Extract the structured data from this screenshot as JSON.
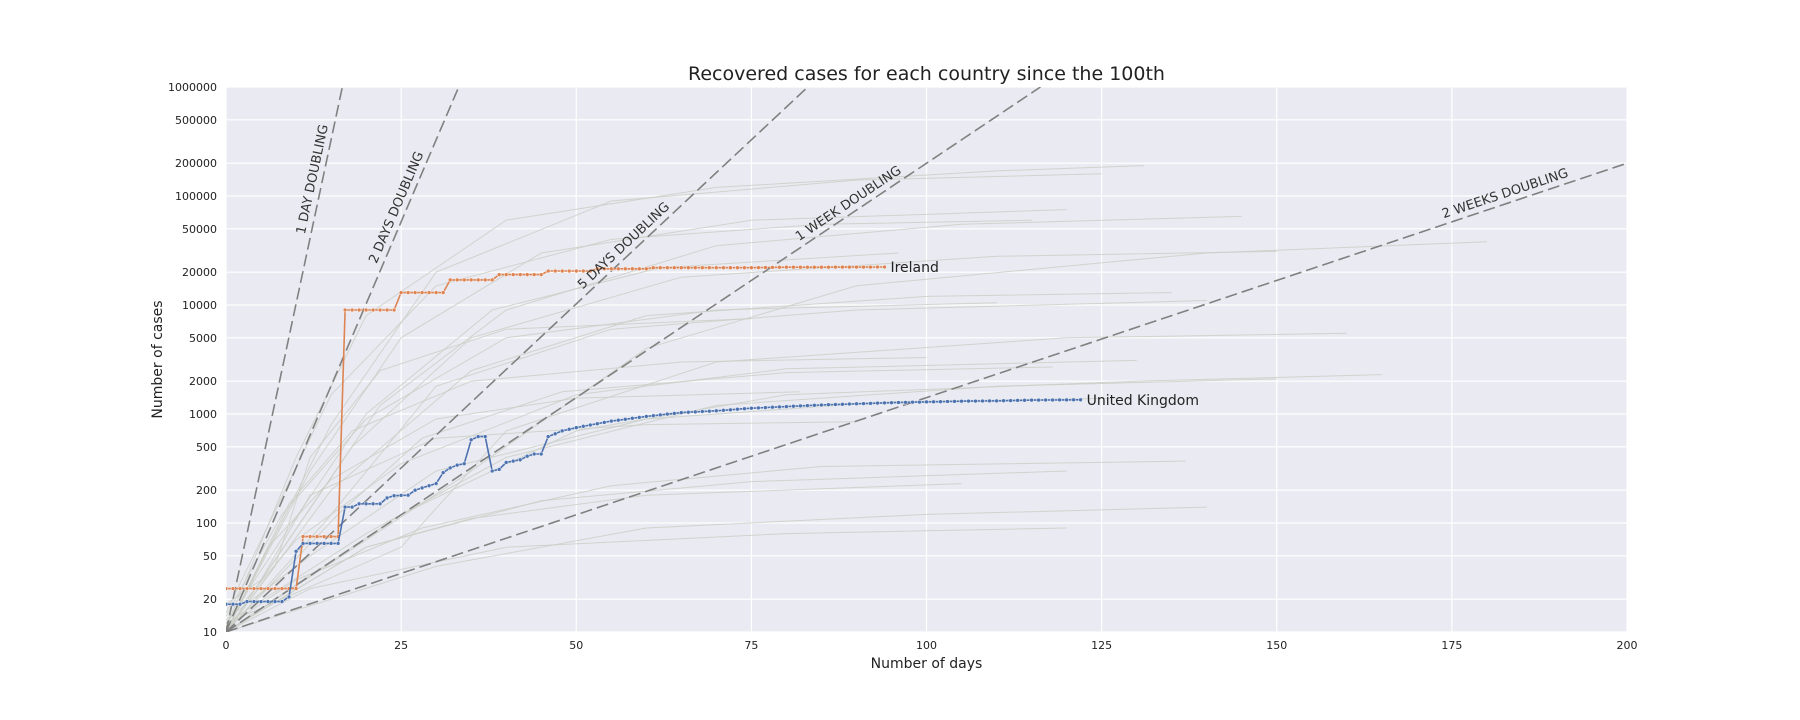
{
  "chart_data": {
    "type": "line",
    "title": "Recovered cases for each country since the 100th",
    "xlabel": "Number of days",
    "ylabel": "Number of cases",
    "xlim": [
      0,
      200
    ],
    "ylim": [
      10,
      1000000
    ],
    "yscale": "log",
    "grid": true,
    "x_ticks": [
      0,
      25,
      50,
      75,
      100,
      125,
      150,
      175,
      200
    ],
    "y_ticks": [
      10,
      20,
      50,
      100,
      200,
      500,
      1000,
      2000,
      5000,
      10000,
      20000,
      50000,
      100000,
      200000,
      500000,
      1000000
    ],
    "colors": {
      "background": "#eaeaf2",
      "grid": "#ffffff",
      "reference": "#808080",
      "other_countries": "#c8cec4",
      "Ireland": "#dd8452",
      "United Kingdom": "#4c72b0"
    },
    "reference_lines": [
      {
        "label": "1 DAY DOUBLING",
        "doubling_days": 1
      },
      {
        "label": "2 DAYS DOUBLING",
        "doubling_days": 2
      },
      {
        "label": "5 DAYS DOUBLING",
        "doubling_days": 5
      },
      {
        "label": "1 WEEK DOUBLING",
        "doubling_days": 7
      },
      {
        "label": "2 WEEKS DOUBLING",
        "doubling_days": 14
      }
    ],
    "series": [
      {
        "name": "Ireland",
        "points": [
          [
            0,
            25
          ],
          [
            10,
            25
          ],
          [
            11,
            75
          ],
          [
            16,
            75
          ],
          [
            17,
            9000
          ],
          [
            24,
            9000
          ],
          [
            25,
            13000
          ],
          [
            31,
            13000
          ],
          [
            32,
            17000
          ],
          [
            38,
            17000
          ],
          [
            39,
            19000
          ],
          [
            45,
            19000
          ],
          [
            46,
            20500
          ],
          [
            52,
            20500
          ],
          [
            53,
            21500
          ],
          [
            60,
            21500
          ],
          [
            61,
            22000
          ],
          [
            75,
            22000
          ],
          [
            80,
            22200
          ],
          [
            94,
            22300
          ]
        ]
      },
      {
        "name": "United Kingdom",
        "points": [
          [
            0,
            18
          ],
          [
            2,
            18
          ],
          [
            3,
            19
          ],
          [
            8,
            19
          ],
          [
            9,
            21
          ],
          [
            10,
            55
          ],
          [
            11,
            65
          ],
          [
            16,
            65
          ],
          [
            17,
            140
          ],
          [
            18,
            140
          ],
          [
            19,
            150
          ],
          [
            22,
            150
          ],
          [
            23,
            170
          ],
          [
            24,
            178
          ],
          [
            26,
            180
          ],
          [
            27,
            200
          ],
          [
            29,
            220
          ],
          [
            30,
            230
          ],
          [
            31,
            290
          ],
          [
            32,
            320
          ],
          [
            33,
            340
          ],
          [
            34,
            350
          ],
          [
            35,
            580
          ],
          [
            36,
            620
          ],
          [
            37,
            620
          ],
          [
            38,
            300
          ],
          [
            39,
            310
          ],
          [
            40,
            360
          ],
          [
            42,
            380
          ],
          [
            43,
            410
          ],
          [
            44,
            430
          ],
          [
            45,
            430
          ],
          [
            46,
            620
          ],
          [
            48,
            700
          ],
          [
            50,
            750
          ],
          [
            55,
            860
          ],
          [
            60,
            950
          ],
          [
            65,
            1030
          ],
          [
            70,
            1070
          ],
          [
            75,
            1130
          ],
          [
            80,
            1170
          ],
          [
            85,
            1210
          ],
          [
            90,
            1240
          ],
          [
            95,
            1270
          ],
          [
            100,
            1290
          ],
          [
            105,
            1310
          ],
          [
            110,
            1320
          ],
          [
            115,
            1340
          ],
          [
            122,
            1350
          ]
        ]
      }
    ],
    "other_countries": [
      [
        [
          0,
          10
        ],
        [
          20,
          60
        ],
        [
          45,
          160
        ],
        [
          75,
          240
        ],
        [
          120,
          300
        ]
      ],
      [
        [
          0,
          12
        ],
        [
          10,
          70
        ],
        [
          25,
          350
        ],
        [
          50,
          1500
        ],
        [
          80,
          2600
        ],
        [
          130,
          3100
        ]
      ],
      [
        [
          0,
          10
        ],
        [
          15,
          200
        ],
        [
          35,
          2500
        ],
        [
          60,
          8000
        ],
        [
          100,
          12000
        ],
        [
          135,
          13000
        ]
      ],
      [
        [
          0,
          14
        ],
        [
          8,
          120
        ],
        [
          20,
          900
        ],
        [
          40,
          5000
        ],
        [
          70,
          9000
        ],
        [
          110,
          10500
        ]
      ],
      [
        [
          0,
          10
        ],
        [
          12,
          300
        ],
        [
          25,
          5000
        ],
        [
          45,
          30000
        ],
        [
          75,
          60000
        ],
        [
          120,
          75000
        ]
      ],
      [
        [
          0,
          11
        ],
        [
          10,
          400
        ],
        [
          20,
          8000
        ],
        [
          40,
          60000
        ],
        [
          70,
          120000
        ],
        [
          110,
          170000
        ],
        [
          131,
          190000
        ]
      ],
      [
        [
          0,
          10
        ],
        [
          15,
          800
        ],
        [
          30,
          20000
        ],
        [
          55,
          90000
        ],
        [
          90,
          140000
        ],
        [
          125,
          160000
        ]
      ],
      [
        [
          0,
          12
        ],
        [
          20,
          80
        ],
        [
          40,
          400
        ],
        [
          70,
          1200
        ],
        [
          110,
          1800
        ],
        [
          150,
          2100
        ]
      ],
      [
        [
          0,
          10
        ],
        [
          25,
          120
        ],
        [
          50,
          700
        ],
        [
          80,
          1500
        ],
        [
          130,
          2000
        ],
        [
          165,
          2300
        ]
      ],
      [
        [
          0,
          10
        ],
        [
          9,
          150
        ],
        [
          18,
          700
        ],
        [
          35,
          2000
        ],
        [
          65,
          3000
        ],
        [
          100,
          3300
        ]
      ],
      [
        [
          0,
          13
        ],
        [
          12,
          50
        ],
        [
          30,
          300
        ],
        [
          60,
          900
        ],
        [
          95,
          1300
        ],
        [
          128,
          1400
        ]
      ],
      [
        [
          0,
          10
        ],
        [
          14,
          100
        ],
        [
          30,
          1800
        ],
        [
          55,
          6000
        ],
        [
          90,
          9000
        ],
        [
          140,
          11000
        ]
      ],
      [
        [
          0,
          11
        ],
        [
          10,
          30
        ],
        [
          28,
          90
        ],
        [
          55,
          220
        ],
        [
          85,
          330
        ],
        [
          137,
          370
        ]
      ],
      [
        [
          0,
          10
        ],
        [
          6,
          60
        ],
        [
          15,
          250
        ],
        [
          30,
          900
        ],
        [
          50,
          1400
        ],
        [
          82,
          1600
        ]
      ],
      [
        [
          0,
          10
        ],
        [
          20,
          60
        ],
        [
          35,
          110
        ],
        [
          60,
          180
        ],
        [
          105,
          230
        ]
      ],
      [
        [
          0,
          15
        ],
        [
          15,
          1500
        ],
        [
          30,
          15000
        ],
        [
          55,
          40000
        ],
        [
          85,
          55000
        ],
        [
          115,
          60000
        ]
      ],
      [
        [
          0,
          10
        ],
        [
          18,
          500
        ],
        [
          35,
          5000
        ],
        [
          65,
          18000
        ],
        [
          110,
          28000
        ],
        [
          150,
          31000
        ]
      ],
      [
        [
          0,
          12
        ],
        [
          25,
          60
        ],
        [
          40,
          700
        ],
        [
          70,
          3000
        ],
        [
          120,
          5000
        ],
        [
          160,
          5500
        ]
      ],
      [
        [
          0,
          10
        ],
        [
          7,
          40
        ],
        [
          12,
          400
        ],
        [
          22,
          2500
        ],
        [
          40,
          6000
        ],
        [
          75,
          7500
        ]
      ],
      [
        [
          0,
          10
        ],
        [
          30,
          40
        ],
        [
          60,
          90
        ],
        [
          100,
          120
        ],
        [
          140,
          140
        ]
      ],
      [
        [
          0,
          18
        ],
        [
          5,
          30
        ],
        [
          12,
          180
        ],
        [
          30,
          600
        ],
        [
          60,
          800
        ],
        [
          90,
          850
        ]
      ],
      [
        [
          0,
          10
        ],
        [
          22,
          1200
        ],
        [
          40,
          9000
        ],
        [
          70,
          35000
        ],
        [
          105,
          55000
        ],
        [
          145,
          65000
        ]
      ],
      [
        [
          0,
          10
        ],
        [
          12,
          25
        ],
        [
          40,
          60
        ],
        [
          80,
          80
        ],
        [
          120,
          90
        ]
      ],
      [
        [
          0,
          10
        ],
        [
          16,
          120
        ],
        [
          28,
          600
        ],
        [
          48,
          1600
        ],
        [
          80,
          2400
        ],
        [
          118,
          2700
        ]
      ],
      [
        [
          0,
          12
        ],
        [
          9,
          90
        ],
        [
          20,
          1000
        ],
        [
          38,
          9000
        ],
        [
          62,
          22000
        ],
        [
          96,
          30000
        ]
      ],
      [
        [
          0,
          10
        ],
        [
          35,
          300
        ],
        [
          60,
          4000
        ],
        [
          90,
          15000
        ],
        [
          140,
          30000
        ],
        [
          180,
          38000
        ]
      ]
    ]
  }
}
